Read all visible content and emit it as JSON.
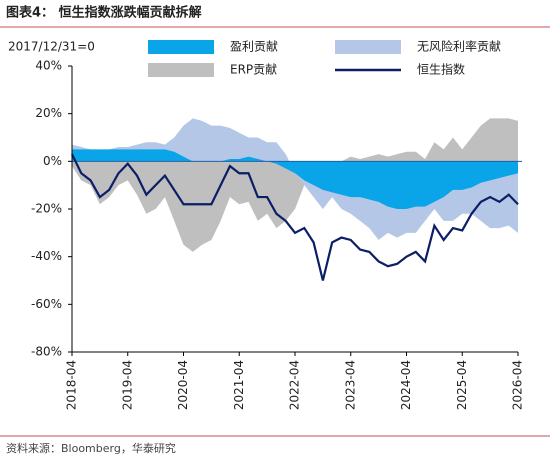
{
  "chart_data": {
    "type": "area_line",
    "title": "图表4：  恒生指数涨跌幅贡献拆解",
    "annotation": "2017/12/31=0",
    "source": "资料来源：Bloomberg，华泰研究",
    "x": [
      "2018-04",
      "2018-06",
      "2018-08",
      "2018-10",
      "2018-12",
      "2019-02",
      "2019-04",
      "2019-06",
      "2019-08",
      "2019-10",
      "2019-12",
      "2020-02",
      "2020-04",
      "2020-06",
      "2020-08",
      "2020-10",
      "2020-12",
      "2021-02",
      "2021-04",
      "2021-06",
      "2021-08",
      "2021-10",
      "2021-12",
      "2022-02",
      "2022-04",
      "2022-06",
      "2022-08",
      "2022-10",
      "2022-12",
      "2023-02",
      "2023-04",
      "2023-06",
      "2023-08",
      "2023-10",
      "2023-12",
      "2024-02",
      "2024-04",
      "2024-06",
      "2024-08",
      "2024-10",
      "2024-12",
      "2025-02",
      "2025-04",
      "2025-06",
      "2025-08",
      "2025-10",
      "2025-12",
      "2026-02",
      "2026-04"
    ],
    "xticks": [
      "2018-04",
      "2019-04",
      "2020-04",
      "2021-04",
      "2022-04",
      "2023-04",
      "2024-04",
      "2025-04",
      "2026-04"
    ],
    "series": [
      {
        "name": "ERP贡献",
        "kind": "area",
        "color": "#bfbfbf",
        "values": [
          -2,
          -8,
          -10,
          -18,
          -15,
          -10,
          -8,
          -14,
          -22,
          -20,
          -15,
          -25,
          -35,
          -38,
          -35,
          -33,
          -25,
          -15,
          -18,
          -17,
          -25,
          -22,
          -28,
          -25,
          -20,
          -10,
          -8,
          -18,
          -5,
          0,
          2,
          1,
          2,
          3,
          2,
          3,
          4,
          4,
          1,
          8,
          5,
          10,
          5,
          10,
          15,
          18,
          18,
          18,
          17
        ]
      },
      {
        "name": "无风险利率贡献",
        "kind": "area",
        "color": "#b4c7e7",
        "values": [
          7,
          6,
          5,
          4,
          5,
          6,
          6,
          7,
          8,
          8,
          7,
          10,
          15,
          18,
          17,
          15,
          15,
          14,
          12,
          10,
          10,
          8,
          8,
          3,
          -5,
          -10,
          -15,
          -20,
          -15,
          -20,
          -22,
          -25,
          -28,
          -33,
          -30,
          -32,
          -30,
          -30,
          -25,
          -20,
          -25,
          -25,
          -22,
          -22,
          -25,
          -28,
          -28,
          -27,
          -30
        ]
      },
      {
        "name": "盈利贡献",
        "kind": "area",
        "color": "#0aa5e8",
        "values": [
          5,
          5,
          5,
          5,
          5,
          5,
          5,
          5,
          5,
          5,
          5,
          4,
          2,
          0,
          0,
          0,
          0,
          1,
          1,
          2,
          1,
          0,
          -1,
          -3,
          -5,
          -8,
          -10,
          -12,
          -13,
          -14,
          -15,
          -15,
          -16,
          -17,
          -19,
          -20,
          -20,
          -19,
          -19,
          -17,
          -15,
          -12,
          -12,
          -11,
          -9,
          -8,
          -7,
          -6,
          -5
        ]
      },
      {
        "name": "恒生指数",
        "kind": "line",
        "color": "#0b1f66",
        "values": [
          3,
          -5,
          -8,
          -15,
          -12,
          -5,
          -1,
          -6,
          -14,
          -10,
          -6,
          -12,
          -18,
          -18,
          -18,
          -18,
          -10,
          -2,
          -5,
          -5,
          -15,
          -15,
          -22,
          -25,
          -30,
          -28,
          -34,
          -50,
          -34,
          -32,
          -33,
          -37,
          -38,
          -42,
          -44,
          -43,
          -40,
          -38,
          -42,
          -27,
          -33,
          -28,
          -29,
          -22,
          -17,
          -15,
          -17,
          -14,
          -18
        ]
      }
    ],
    "legend_order": [
      2,
      1,
      0,
      3
    ],
    "ylim": [
      -80,
      40
    ],
    "yticks": [
      {
        "value": -80,
        "label": "-80%"
      },
      {
        "value": -60,
        "label": "-60%"
      },
      {
        "value": -40,
        "label": "-40%"
      },
      {
        "value": -20,
        "label": "-20%"
      },
      {
        "value": 0,
        "label": "0%"
      },
      {
        "value": 20,
        "label": "20%"
      },
      {
        "value": 40,
        "label": "40%"
      }
    ]
  }
}
